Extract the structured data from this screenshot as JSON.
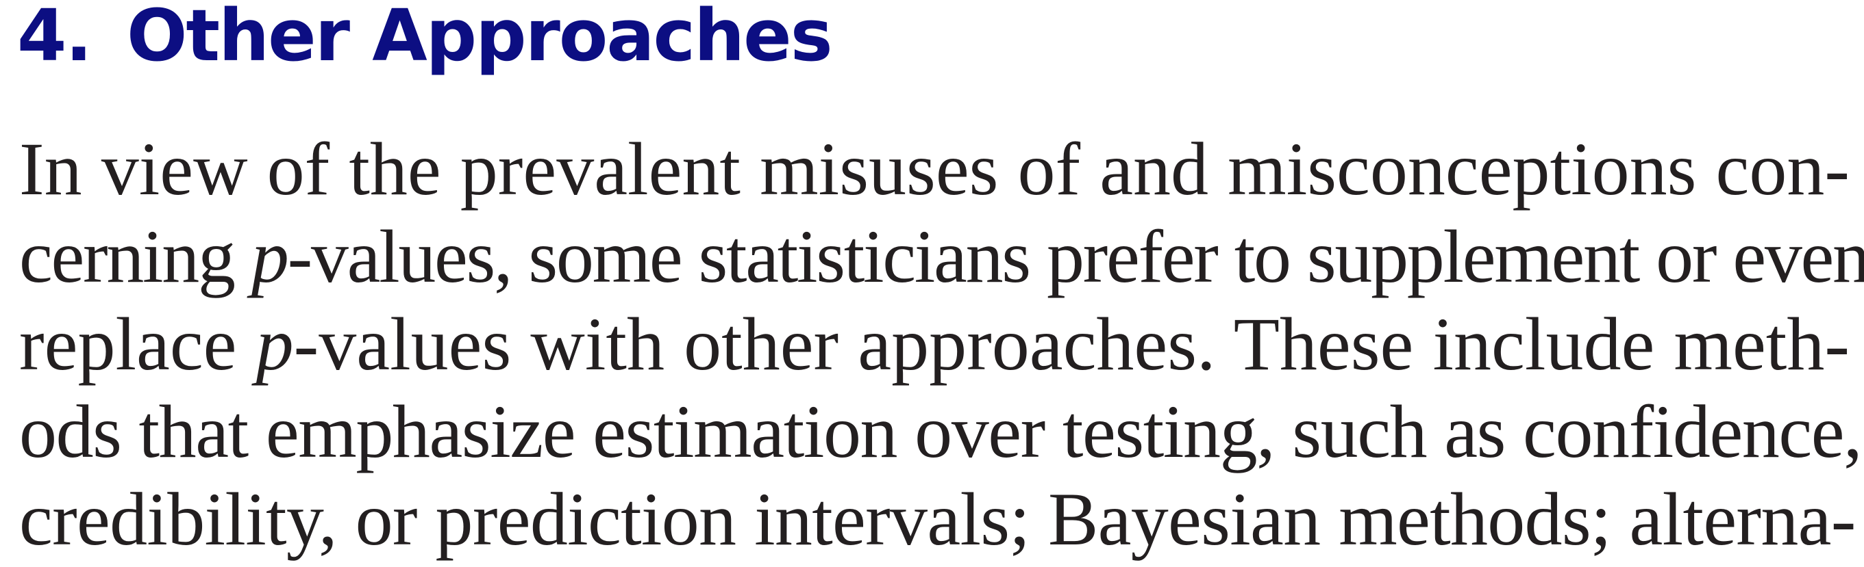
{
  "section": {
    "number": "4.",
    "title": "Other Approaches"
  },
  "paragraph": {
    "lines": [
      [
        "In view of the prevalent misuses of and misconceptions con-"
      ],
      [
        "cerning ",
        "p",
        "-values, some statisticians prefer to supplement or even"
      ],
      [
        "replace ",
        "p",
        "-values with other approaches. These include meth-"
      ],
      [
        "ods that emphasize estimation over testing, such as confidence,"
      ],
      [
        "credibility, or prediction intervals; Bayesian methods; alterna-"
      ]
    ]
  }
}
